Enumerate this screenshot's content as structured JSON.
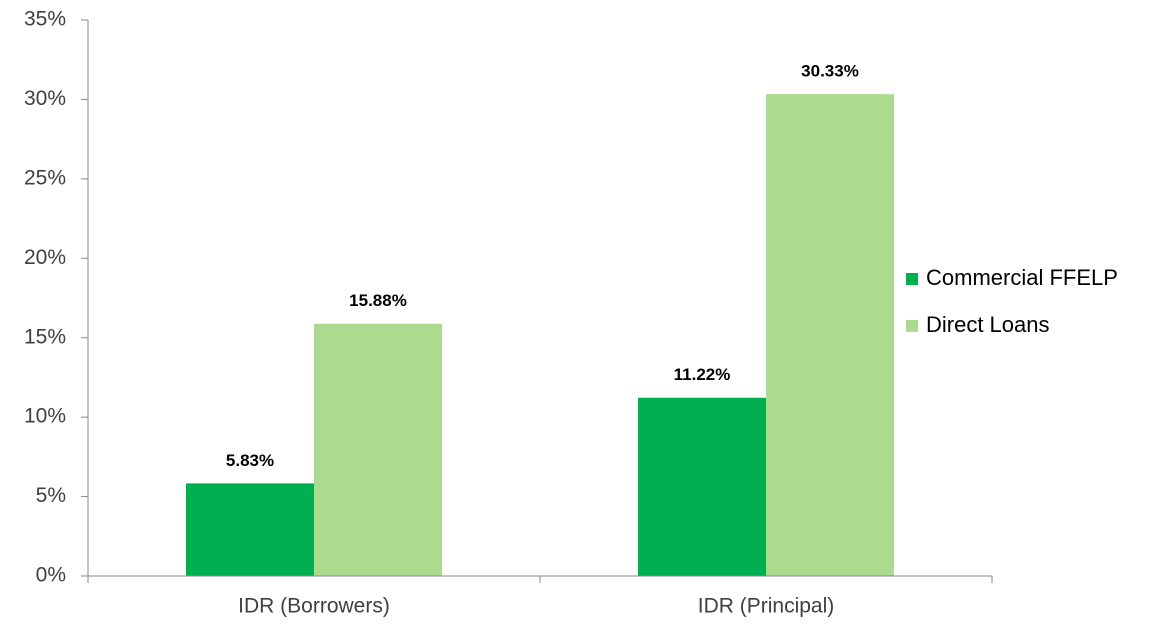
{
  "chart_data": {
    "type": "bar",
    "categories": [
      "IDR (Borrowers)",
      "IDR (Principal)"
    ],
    "series": [
      {
        "name": "Commercial FFELP",
        "color": "#00b050",
        "values": [
          5.83,
          11.22
        ],
        "value_labels": [
          "5.83%",
          "11.22%"
        ]
      },
      {
        "name": "Direct Loans",
        "color": "#acda8e",
        "values": [
          15.88,
          30.33
        ],
        "value_labels": [
          "15.88%",
          "30.33%"
        ]
      }
    ],
    "ylim": [
      0,
      35
    ],
    "yticks": [
      {
        "value": 0,
        "label": "0%"
      },
      {
        "value": 5,
        "label": "5%"
      },
      {
        "value": 10,
        "label": "10%"
      },
      {
        "value": 15,
        "label": "15%"
      },
      {
        "value": 20,
        "label": "20%"
      },
      {
        "value": 25,
        "label": "25%"
      },
      {
        "value": 30,
        "label": "30%"
      },
      {
        "value": 35,
        "label": "35%"
      }
    ],
    "legend": "right"
  }
}
